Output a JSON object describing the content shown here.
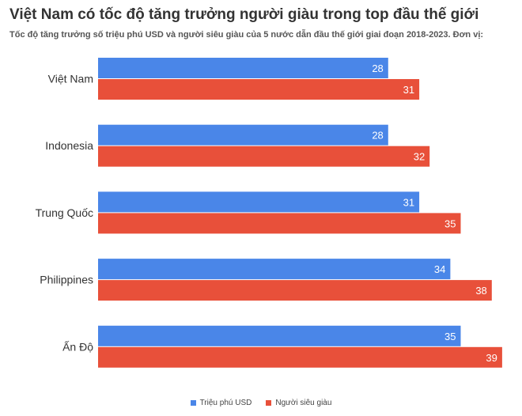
{
  "chart_data": {
    "type": "bar",
    "orientation": "horizontal",
    "title": "Việt Nam có tốc độ tăng trưởng người giàu trong top đầu thế giới",
    "subtitle": "Tốc độ tăng trưởng số triệu phú USD và người siêu giàu của 5 nước dẫn đầu thế giới giai đoạn 2018-2023. Đơn vị:",
    "categories": [
      "Việt Nam",
      "Indonesia",
      "Trung Quốc",
      "Philippines",
      "Ấn Độ"
    ],
    "series": [
      {
        "name": "Triệu phú USD",
        "color": "#4a86e8",
        "values": [
          28,
          28,
          31,
          34,
          35
        ]
      },
      {
        "name": "Người siêu giàu",
        "color": "#e8503a",
        "values": [
          31,
          32,
          35,
          38,
          39
        ]
      }
    ],
    "xlim": [
      0,
      40
    ],
    "grid": false,
    "legend_position": "bottom"
  }
}
